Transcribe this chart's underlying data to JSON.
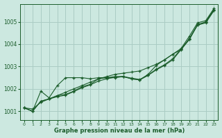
{
  "background_color": "#cce8e0",
  "grid_color": "#aaccc4",
  "line_color": "#1a5c2a",
  "title": "Graphe pression niveau de la mer (hPa)",
  "xlim": [
    -0.5,
    23.5
  ],
  "ylim": [
    1000.6,
    1005.8
  ],
  "yticks": [
    1001,
    1002,
    1003,
    1004,
    1005
  ],
  "xticks": [
    0,
    1,
    2,
    3,
    4,
    5,
    6,
    7,
    8,
    9,
    10,
    11,
    12,
    13,
    14,
    15,
    16,
    17,
    18,
    19,
    20,
    21,
    22,
    23
  ],
  "series": [
    [
      1001.15,
      1001.1,
      1001.4,
      1001.55,
      1001.7,
      1001.85,
      1002.0,
      1002.15,
      1002.3,
      1002.45,
      1002.55,
      1002.65,
      1002.7,
      1002.75,
      1002.8,
      1002.95,
      1003.1,
      1003.3,
      1003.55,
      1003.75,
      1004.25,
      1004.85,
      1005.0,
      1005.55
    ],
    [
      1001.15,
      1001.0,
      1001.9,
      1001.6,
      1002.15,
      1002.5,
      1002.5,
      1002.5,
      1002.45,
      1002.5,
      1002.5,
      1002.55,
      1002.55,
      1002.45,
      1002.4,
      1002.65,
      1003.05,
      1003.3,
      1003.55,
      1003.8,
      1004.35,
      1004.95,
      1005.05,
      1005.6
    ],
    [
      1001.15,
      1001.0,
      1001.45,
      1001.55,
      1001.7,
      1001.75,
      1001.9,
      1002.1,
      1002.2,
      1002.45,
      1002.5,
      1002.5,
      1002.55,
      1002.45,
      1002.4,
      1002.6,
      1002.85,
      1003.05,
      1003.3,
      1003.75,
      1004.2,
      1004.85,
      1004.95,
      1005.5
    ],
    [
      1001.15,
      1001.0,
      1001.45,
      1001.55,
      1001.65,
      1001.72,
      1001.88,
      1002.05,
      1002.18,
      1002.35,
      1002.45,
      1002.52,
      1002.55,
      1002.48,
      1002.42,
      1002.62,
      1002.88,
      1003.08,
      1003.35,
      1003.78,
      1004.22,
      1004.88,
      1004.98,
      1005.52
    ]
  ]
}
